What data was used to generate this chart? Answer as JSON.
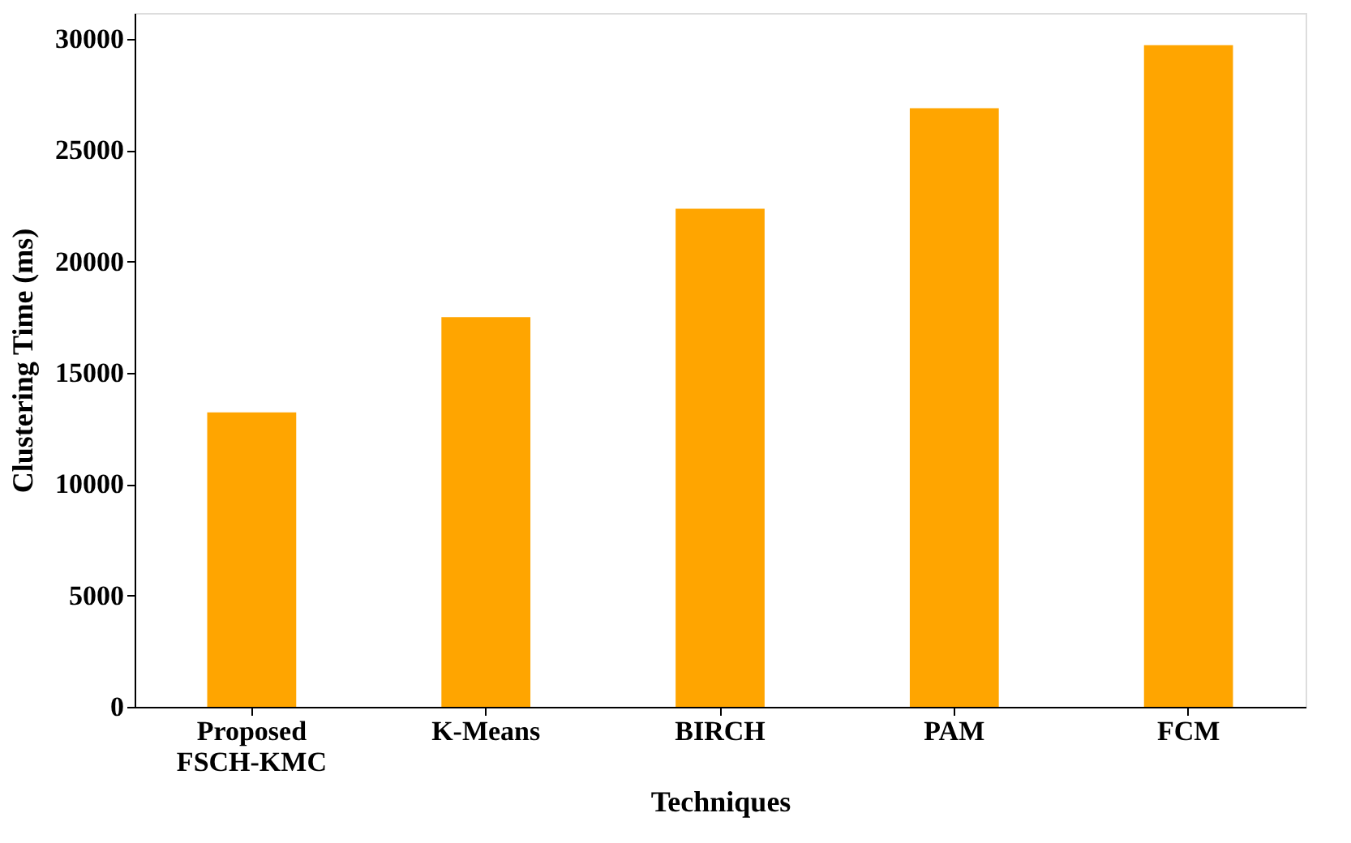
{
  "chart_data": {
    "type": "bar",
    "xlabel": "Techniques",
    "ylabel": "Clustering Time (ms)",
    "categories": [
      "Proposed\nFSCH-KMC",
      "K-Means",
      "BIRCH",
      "PAM",
      "FCM"
    ],
    "values": [
      13220,
      17500,
      22370,
      26880,
      29710
    ],
    "color": "#ffa500",
    "ylim": [
      0,
      31160
    ],
    "yticks": [
      0,
      5000,
      10000,
      15000,
      20000,
      25000,
      30000
    ],
    "grid": false
  }
}
